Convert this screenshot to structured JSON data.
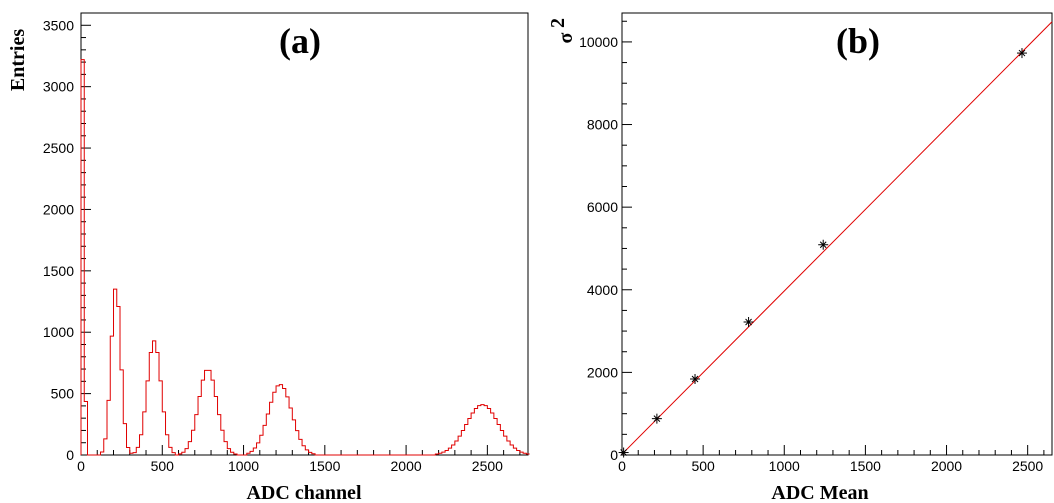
{
  "chart_data": [
    {
      "type": "histogram",
      "panel_label": "(a)",
      "xlabel": "ADC channel",
      "ylabel": "Entries",
      "xlim": [
        0,
        2750
      ],
      "ylim": [
        0,
        3600
      ],
      "xticks": [
        0,
        500,
        1000,
        1500,
        2000,
        2500
      ],
      "yticks": [
        0,
        500,
        1000,
        1500,
        2000,
        2500,
        3000,
        3500
      ],
      "xtick_labels": [
        "0",
        "500",
        "1000",
        "1500",
        "2000",
        "2500"
      ],
      "ytick_labels": [
        "0",
        "500",
        "1000",
        "1500",
        "2000",
        "2500",
        "3000",
        "3500"
      ],
      "bin_width": 20,
      "line_color": "#e00000",
      "peaks": [
        {
          "mean": 10,
          "sigma": 10,
          "height": 3220
        },
        {
          "mean": 215,
          "sigma": 30,
          "height": 1370
        },
        {
          "mean": 450,
          "sigma": 43,
          "height": 930
        },
        {
          "mean": 780,
          "sigma": 57,
          "height": 700
        },
        {
          "mean": 1225,
          "sigma": 72,
          "height": 575
        },
        {
          "mean": 2470,
          "sigma": 100,
          "height": 410
        }
      ]
    },
    {
      "type": "scatter",
      "panel_label": "(b)",
      "xlabel": "ADC Mean",
      "ylabel": "σ",
      "ylabel_superscript": "2",
      "xlim": [
        0,
        2650
      ],
      "ylim": [
        0,
        10700
      ],
      "xticks": [
        0,
        500,
        1000,
        1500,
        2000,
        2500
      ],
      "yticks": [
        0,
        2000,
        4000,
        6000,
        8000,
        10000
      ],
      "xtick_labels": [
        "0",
        "500",
        "1000",
        "1500",
        "2000",
        "2500"
      ],
      "ytick_labels": [
        "0",
        "2000",
        "4000",
        "6000",
        "8000",
        "10000"
      ],
      "marker_color": "#000000",
      "fit_color": "#e00000",
      "points": [
        {
          "x": 10,
          "y": 60
        },
        {
          "x": 215,
          "y": 880
        },
        {
          "x": 450,
          "y": 1840
        },
        {
          "x": 780,
          "y": 3220
        },
        {
          "x": 1240,
          "y": 5090
        },
        {
          "x": 2465,
          "y": 9730
        }
      ],
      "fit": {
        "slope": 3.95,
        "intercept": 20
      }
    }
  ]
}
